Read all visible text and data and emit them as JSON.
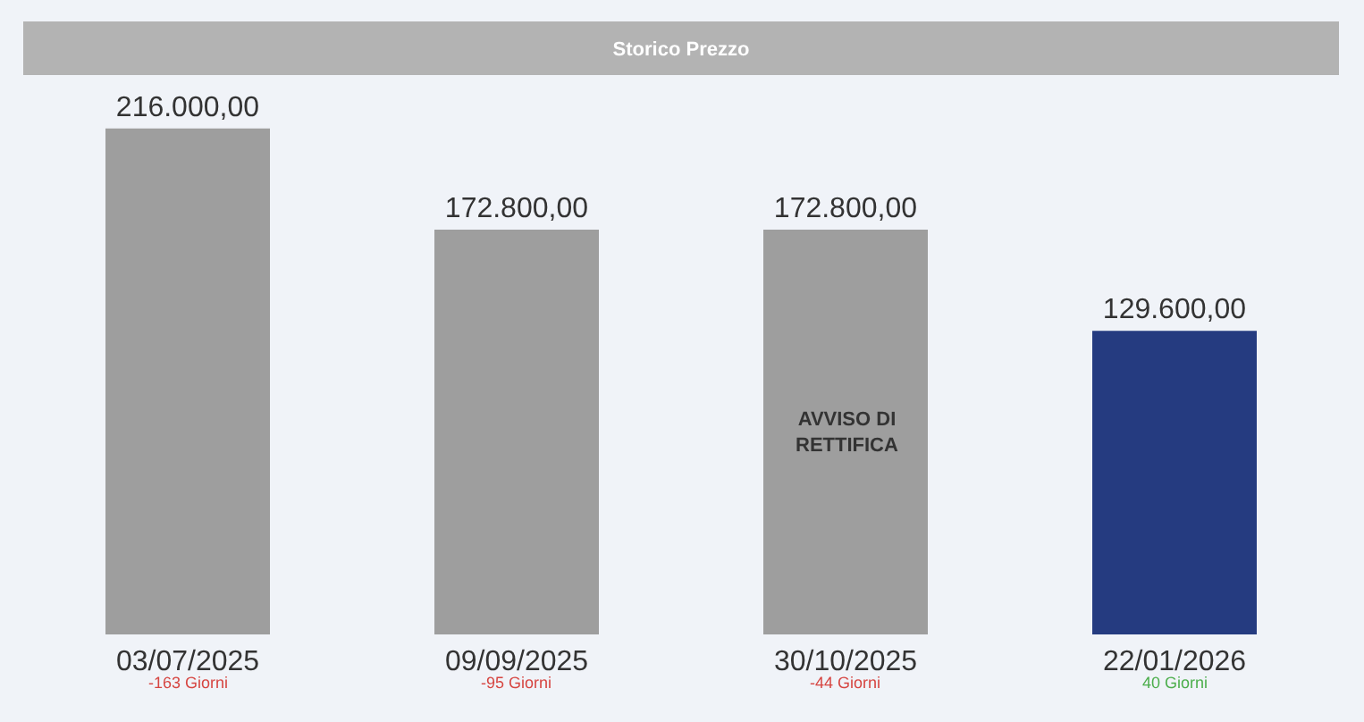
{
  "chart_data": {
    "type": "bar",
    "title": "Storico Prezzo",
    "categories": [
      "03/07/2025",
      "09/09/2025",
      "30/10/2025",
      "22/01/2026"
    ],
    "values": [
      216000,
      172800,
      172800,
      129600
    ],
    "colors": [
      "#9e9e9e",
      "#9e9e9e",
      "#9e9e9e",
      "#253b80"
    ],
    "value_labels": [
      "216.000,00",
      "172.800,00",
      "172.800,00",
      "129.600,00"
    ],
    "annotations": [
      "AVVISO DI\nRETTIFICA",
      "-163 Giorni",
      "-95 Giorni",
      "-44 Giorni",
      "40 Giorni"
    ]
  }
}
